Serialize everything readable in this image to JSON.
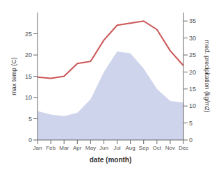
{
  "chart_data": {
    "type": "line",
    "xlabel": "date (month)",
    "ylabel": "max temp (C)",
    "y2label": "med. precipitation (kg/m2)",
    "categories": [
      "Jan",
      "Feb",
      "Mar",
      "Apr",
      "May",
      "Jun",
      "Jul",
      "Aug",
      "Sep",
      "Oct",
      "Nov",
      "Dec"
    ],
    "series": [
      {
        "type": "area",
        "axis": "y2",
        "color": "#c5cce8",
        "values": [
          8.5,
          7.5,
          7.0,
          8.0,
          12.0,
          20.0,
          26.0,
          25.5,
          21.0,
          15.0,
          11.5,
          11.0
        ]
      },
      {
        "type": "line",
        "color": "#cc5555",
        "values": [
          14.8,
          14.5,
          15.0,
          18.0,
          18.5,
          23.5,
          27.0,
          27.5,
          28.0,
          26.0,
          21.0,
          17.5
        ]
      }
    ],
    "ylim": [
      0,
      30
    ],
    "yticks": [
      0,
      5,
      10,
      15,
      20,
      25
    ],
    "y2lim": [
      0,
      37.5
    ],
    "y2ticks": [
      0,
      5,
      10,
      15,
      20,
      25,
      30,
      35
    ],
    "grid": false
  }
}
